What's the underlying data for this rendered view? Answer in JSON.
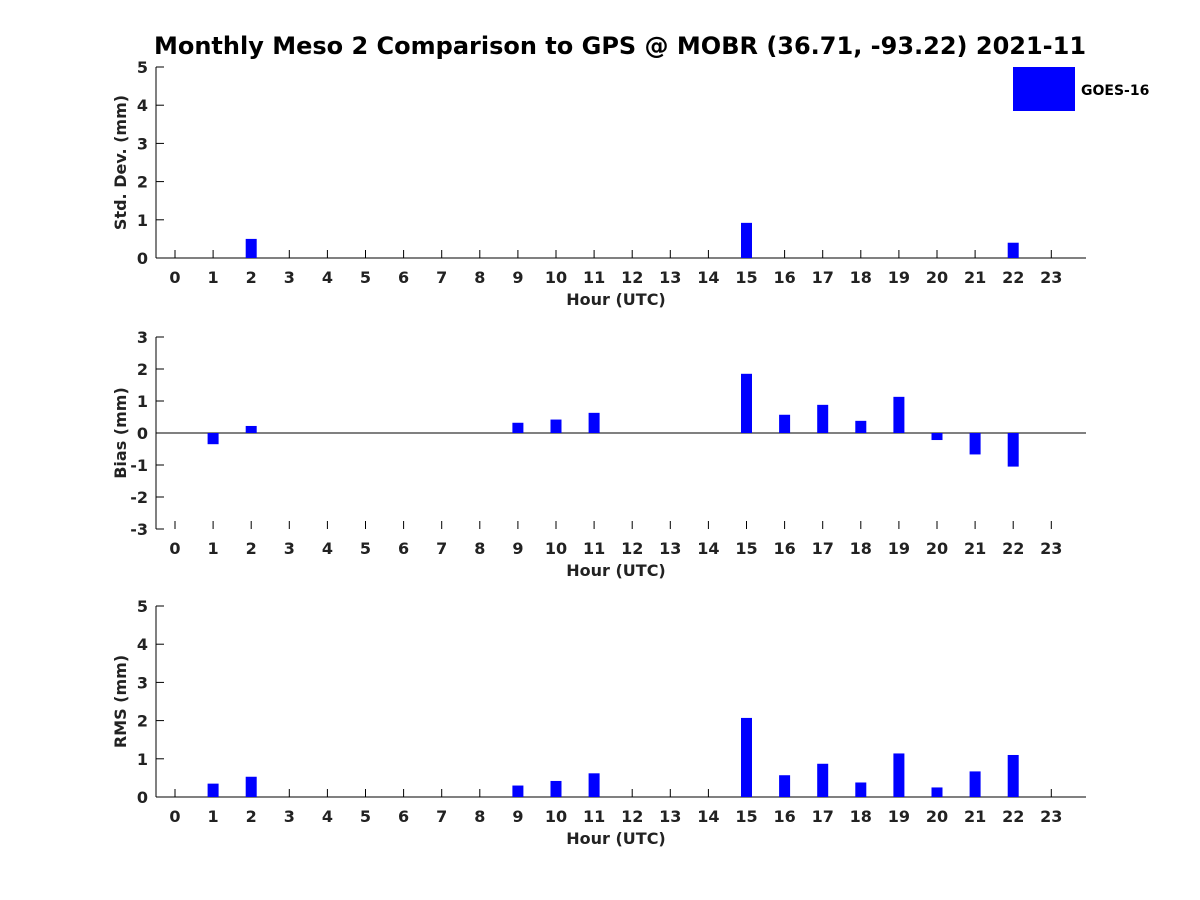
{
  "title": "Monthly Meso 2 Comparison to GPS @ MOBR (36.71, -93.22) 2021-11",
  "colors": {
    "bar": "#0000ff",
    "axis": "#000000",
    "text": "#222222"
  },
  "legend": {
    "label": "GOES-16",
    "placement": "top-right"
  },
  "chart_data": [
    {
      "type": "bar",
      "title": "",
      "xlabel": "Hour (UTC)",
      "ylabel": "Std. Dev. (mm)",
      "ylim": [
        0,
        5
      ],
      "yticks": [
        "0",
        "1",
        "2",
        "3",
        "4",
        "5"
      ],
      "categories": [
        "0",
        "1",
        "2",
        "3",
        "4",
        "5",
        "6",
        "7",
        "8",
        "9",
        "10",
        "11",
        "12",
        "13",
        "14",
        "15",
        "16",
        "17",
        "18",
        "19",
        "20",
        "21",
        "22",
        "23"
      ],
      "series": [
        {
          "name": "GOES-16",
          "values": [
            null,
            null,
            0.5,
            null,
            null,
            null,
            null,
            null,
            null,
            null,
            null,
            null,
            null,
            null,
            null,
            0.92,
            null,
            null,
            null,
            null,
            null,
            null,
            0.4,
            null
          ]
        }
      ],
      "grid": false
    },
    {
      "type": "bar",
      "title": "",
      "xlabel": "Hour (UTC)",
      "ylabel": "Bias (mm)",
      "ylim": [
        -3,
        3
      ],
      "yticks": [
        "-3",
        "-2",
        "-1",
        "0",
        "1",
        "2",
        "3"
      ],
      "categories": [
        "0",
        "1",
        "2",
        "3",
        "4",
        "5",
        "6",
        "7",
        "8",
        "9",
        "10",
        "11",
        "12",
        "13",
        "14",
        "15",
        "16",
        "17",
        "18",
        "19",
        "20",
        "21",
        "22",
        "23"
      ],
      "series": [
        {
          "name": "GOES-16",
          "values": [
            null,
            -0.35,
            0.22,
            null,
            null,
            null,
            null,
            null,
            null,
            0.32,
            0.42,
            0.63,
            null,
            null,
            null,
            1.85,
            0.57,
            0.88,
            0.38,
            1.13,
            -0.22,
            -0.67,
            -1.05,
            null
          ]
        }
      ],
      "grid": false
    },
    {
      "type": "bar",
      "title": "",
      "xlabel": "Hour (UTC)",
      "ylabel": "RMS (mm)",
      "ylim": [
        0,
        5
      ],
      "yticks": [
        "0",
        "1",
        "2",
        "3",
        "4",
        "5"
      ],
      "categories": [
        "0",
        "1",
        "2",
        "3",
        "4",
        "5",
        "6",
        "7",
        "8",
        "9",
        "10",
        "11",
        "12",
        "13",
        "14",
        "15",
        "16",
        "17",
        "18",
        "19",
        "20",
        "21",
        "22",
        "23"
      ],
      "series": [
        {
          "name": "GOES-16",
          "values": [
            null,
            0.35,
            0.53,
            null,
            null,
            null,
            null,
            null,
            null,
            0.3,
            0.42,
            0.62,
            null,
            null,
            null,
            2.07,
            0.57,
            0.87,
            0.38,
            1.14,
            0.25,
            0.67,
            1.1,
            null
          ]
        }
      ],
      "grid": false
    }
  ]
}
